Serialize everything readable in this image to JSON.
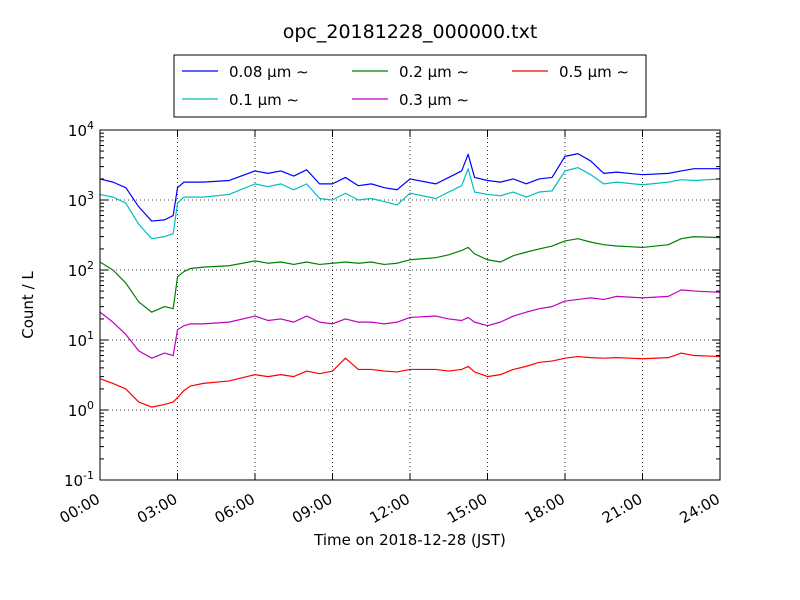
{
  "chart_data": {
    "type": "line",
    "title": "opc_20181228_000000.txt",
    "xlabel": "Time on 2018-12-28 (JST)",
    "ylabel": "Count / L",
    "yscale": "log",
    "ylim": [
      0.1,
      10000
    ],
    "xlim": [
      "00:00",
      "24:00"
    ],
    "x_ticks": [
      "00:00",
      "03:00",
      "06:00",
      "09:00",
      "12:00",
      "15:00",
      "18:00",
      "21:00",
      "24:00"
    ],
    "y_ticks": [
      {
        "value": 0.1,
        "base": "10",
        "exp": "-1"
      },
      {
        "value": 1,
        "base": "10",
        "exp": "0"
      },
      {
        "value": 10,
        "base": "10",
        "exp": "1"
      },
      {
        "value": 100,
        "base": "10",
        "exp": "2"
      },
      {
        "value": 1000,
        "base": "10",
        "exp": "3"
      },
      {
        "value": 10000,
        "base": "10",
        "exp": "4"
      }
    ],
    "grid": true,
    "legend_position": "top-center",
    "x": [
      "00:00",
      "00:30",
      "01:00",
      "01:30",
      "02:00",
      "02:30",
      "02:50",
      "03:00",
      "03:15",
      "03:30",
      "04:00",
      "05:00",
      "06:00",
      "06:30",
      "07:00",
      "07:30",
      "08:00",
      "08:30",
      "09:00",
      "09:30",
      "10:00",
      "10:30",
      "11:00",
      "11:30",
      "12:00",
      "13:00",
      "13:30",
      "14:00",
      "14:15",
      "14:30",
      "15:00",
      "15:30",
      "16:00",
      "16:30",
      "17:00",
      "17:30",
      "18:00",
      "18:30",
      "19:00",
      "19:30",
      "20:00",
      "21:00",
      "22:00",
      "22:30",
      "23:00",
      "24:00"
    ],
    "series": [
      {
        "name": "0.08 µm ∼",
        "color": "#0000ff",
        "values": [
          2000,
          1800,
          1500,
          800,
          500,
          520,
          600,
          1500,
          1800,
          1800,
          1800,
          1900,
          2600,
          2400,
          2600,
          2200,
          2700,
          1700,
          1700,
          2100,
          1600,
          1700,
          1500,
          1400,
          2000,
          1700,
          2100,
          2600,
          4500,
          2100,
          1900,
          1800,
          2000,
          1700,
          2000,
          2100,
          4200,
          4600,
          3600,
          2400,
          2500,
          2300,
          2400,
          2600,
          2800,
          2800
        ]
      },
      {
        "name": "0.1 µm ∼",
        "color": "#00bfbf",
        "values": [
          1200,
          1100,
          900,
          450,
          280,
          300,
          330,
          900,
          1100,
          1100,
          1100,
          1200,
          1700,
          1550,
          1700,
          1400,
          1700,
          1050,
          1000,
          1250,
          1000,
          1050,
          950,
          850,
          1250,
          1050,
          1300,
          1600,
          2800,
          1300,
          1200,
          1150,
          1300,
          1100,
          1300,
          1350,
          2600,
          2900,
          2300,
          1700,
          1800,
          1650,
          1800,
          1950,
          1900,
          2000
        ]
      },
      {
        "name": "0.2 µm ∼",
        "color": "#008000",
        "values": [
          130,
          100,
          65,
          35,
          25,
          30,
          28,
          80,
          95,
          105,
          110,
          115,
          135,
          125,
          130,
          120,
          130,
          120,
          125,
          130,
          125,
          130,
          120,
          125,
          140,
          150,
          165,
          190,
          210,
          170,
          140,
          130,
          160,
          180,
          200,
          220,
          260,
          280,
          250,
          230,
          220,
          210,
          230,
          280,
          300,
          290
        ]
      },
      {
        "name": "0.3 µm ∼",
        "color": "#bf00bf",
        "values": [
          25,
          18,
          12,
          7,
          5.5,
          6.5,
          6,
          14,
          16,
          17,
          17,
          18,
          22,
          19,
          20,
          18,
          22,
          18,
          17,
          20,
          18,
          18,
          17,
          18,
          21,
          22,
          20,
          19,
          21,
          18,
          16,
          18,
          22,
          25,
          28,
          30,
          36,
          38,
          40,
          38,
          42,
          40,
          42,
          52,
          50,
          48
        ]
      },
      {
        "name": "0.5 µm ∼",
        "color": "#ff0000",
        "values": [
          2.8,
          2.4,
          2.0,
          1.3,
          1.1,
          1.2,
          1.3,
          1.5,
          1.9,
          2.2,
          2.4,
          2.6,
          3.2,
          3.0,
          3.2,
          3.0,
          3.6,
          3.3,
          3.6,
          5.5,
          3.8,
          3.8,
          3.6,
          3.5,
          3.8,
          3.8,
          3.6,
          3.8,
          4.2,
          3.5,
          3.0,
          3.2,
          3.8,
          4.2,
          4.8,
          5.0,
          5.5,
          5.8,
          5.6,
          5.5,
          5.6,
          5.4,
          5.6,
          6.5,
          6.0,
          5.8
        ]
      }
    ]
  }
}
